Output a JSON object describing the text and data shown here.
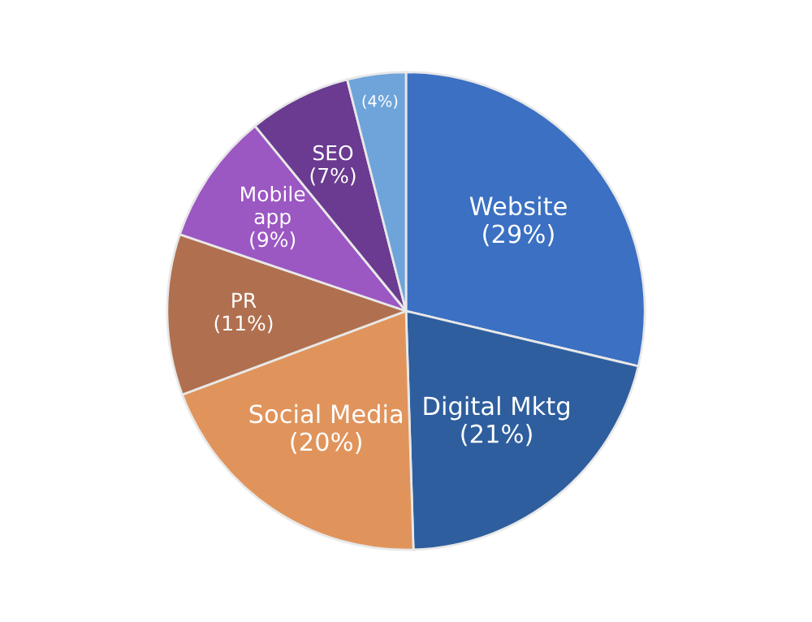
{
  "chart_data": {
    "type": "pie",
    "categories": [
      "Website",
      "Digital Mktg",
      "Social Media",
      "PR",
      "Mobile app",
      "SEO",
      null
    ],
    "values": [
      29,
      21,
      20,
      11,
      9,
      7,
      4
    ],
    "value_labels": [
      "(29%)",
      "(21%)",
      "(20%)",
      "(11%)",
      "(9%)",
      "(7%)",
      "(4%)"
    ],
    "colors": [
      "#3b70c2",
      "#2e5e9e",
      "#e0945c",
      "#b0704f",
      "#9b57c2",
      "#6a3b90",
      "#6ea4da"
    ],
    "legend": false
  }
}
